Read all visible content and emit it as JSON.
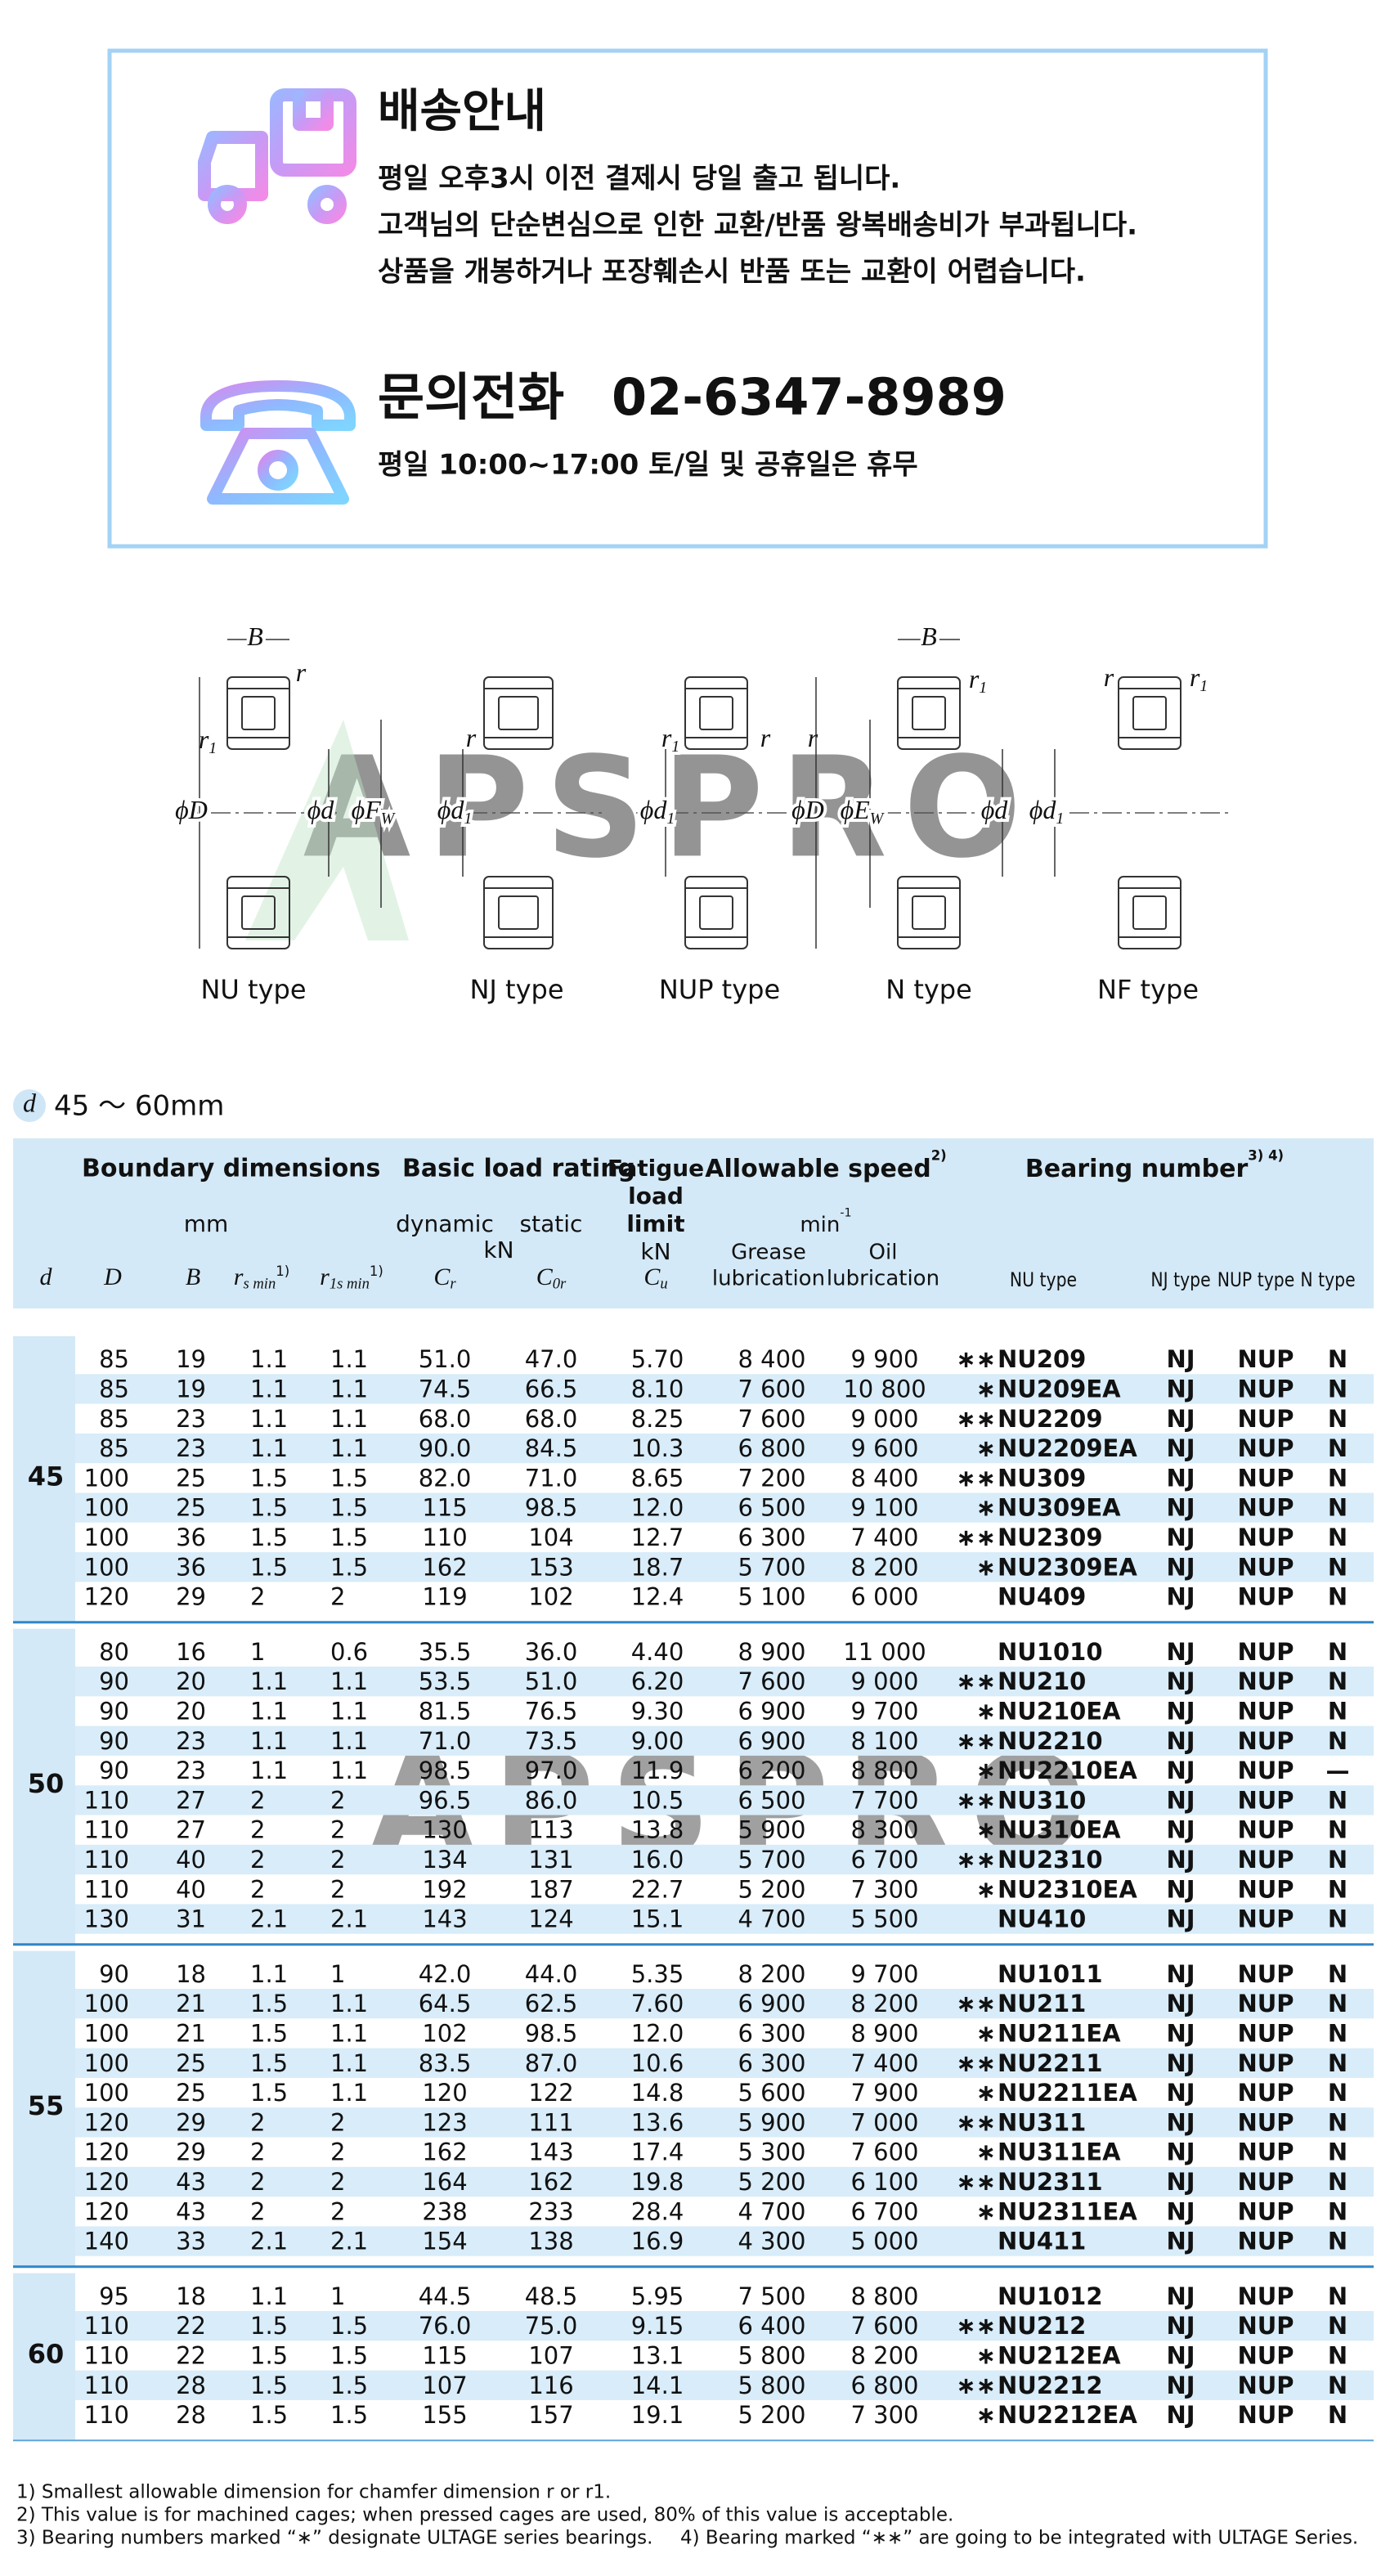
{
  "notice": {
    "title": "배송안내",
    "lines": [
      "평일 오후3시 이전 결제시 당일 출고 됩니다.",
      "고객님의 단순변심으로 인한 교환/반품 왕복배송비가 부과됩니다.",
      "상품을 개봉하거나 포장훼손시 반품 또는 교환이 어렵습니다."
    ],
    "phone_label": "문의전화",
    "phone_number": "02-6347-8989",
    "hours": "평일 10:00~17:00 토/일 및 공휴일은 휴무"
  },
  "diagram": {
    "watermark": "APSPRO",
    "types": [
      {
        "name": "NU type",
        "symbols": [
          {
            "t": "B"
          },
          {
            "t": "r"
          },
          {
            "t": "r",
            "sub": "1"
          },
          {
            "t": "ϕD"
          },
          {
            "t": "ϕd"
          },
          {
            "t": "ϕF",
            "sub": "W"
          }
        ]
      },
      {
        "name": "NJ type",
        "symbols": [
          {
            "t": "r"
          },
          {
            "t": "ϕd",
            "sub": "1"
          }
        ]
      },
      {
        "name": "NUP type",
        "symbols": [
          {
            "t": "r",
            "sub": "1"
          },
          {
            "t": "r"
          },
          {
            "t": "ϕd",
            "sub": "1"
          }
        ]
      },
      {
        "name": "N type",
        "symbols": [
          {
            "t": "B"
          },
          {
            "t": "r",
            "sub": "1"
          },
          {
            "t": "r"
          },
          {
            "t": "ϕD"
          },
          {
            "t": "ϕE",
            "sub": "W"
          },
          {
            "t": "ϕd"
          },
          {
            "t": "ϕd",
            "sub": "1"
          }
        ]
      },
      {
        "name": "NF type",
        "symbols": [
          {
            "t": "r"
          },
          {
            "t": "r",
            "sub": "1"
          }
        ]
      }
    ]
  },
  "range": {
    "symbol": "d",
    "text": "45 ～ 60mm"
  },
  "table": {
    "headers": {
      "boundary": "Boundary dimensions",
      "mm": "mm",
      "basic": "Basic load rating",
      "dynamic": "dynamic",
      "static": "static",
      "kn1": "kN",
      "fatigue": [
        "Fatigue",
        "load",
        "limit"
      ],
      "kn2": "kN",
      "speed": {
        "t": "Allowable speed",
        "sup": "2)"
      },
      "min": {
        "t": "min",
        "sup": "-1"
      },
      "grease": [
        "Grease",
        "lubrication"
      ],
      "oil": [
        "Oil",
        "lubrication"
      ],
      "bearing": {
        "t": "Bearing number",
        "sup": "3) 4)"
      },
      "symbols": [
        {
          "t": "d"
        },
        {
          "t": "D"
        },
        {
          "t": "B"
        },
        {
          "t": "r",
          "sub": "s min",
          "sup": "1)"
        },
        {
          "t": "r",
          "sub": "1s min",
          "sup": "1)"
        },
        {
          "t": "C",
          "sub": "r"
        },
        {
          "t": "C",
          "sub": "0r"
        },
        {
          "t": "C",
          "sub": "u"
        }
      ],
      "types": [
        "NU type",
        "NJ type",
        "NUP type",
        "N type"
      ]
    },
    "groups": [
      {
        "d": "45",
        "marks": [
          "∗∗",
          "∗",
          "∗∗",
          "∗",
          "∗∗",
          "∗",
          "∗∗",
          "∗",
          null
        ],
        "rows": [
          [
            "85",
            "19",
            "1.1",
            "1.1",
            "51.0",
            "47.0",
            "5.70",
            "8 400",
            "9 900",
            "NU209",
            "NJ",
            "NUP",
            "N"
          ],
          [
            "85",
            "19",
            "1.1",
            "1.1",
            "74.5",
            "66.5",
            "8.10",
            "7 600",
            "10 800",
            "NU209EA",
            "NJ",
            "NUP",
            "N"
          ],
          [
            "85",
            "23",
            "1.1",
            "1.1",
            "68.0",
            "68.0",
            "8.25",
            "7 600",
            "9 000",
            "NU2209",
            "NJ",
            "NUP",
            "N"
          ],
          [
            "85",
            "23",
            "1.1",
            "1.1",
            "90.0",
            "84.5",
            "10.3",
            "6 800",
            "9 600",
            "NU2209EA",
            "NJ",
            "NUP",
            "N"
          ],
          [
            "100",
            "25",
            "1.5",
            "1.5",
            "82.0",
            "71.0",
            "8.65",
            "7 200",
            "8 400",
            "NU309",
            "NJ",
            "NUP",
            "N"
          ],
          [
            "100",
            "25",
            "1.5",
            "1.5",
            "115",
            "98.5",
            "12.0",
            "6 500",
            "9 100",
            "NU309EA",
            "NJ",
            "NUP",
            "N"
          ],
          [
            "100",
            "36",
            "1.5",
            "1.5",
            "110",
            "104",
            "12.7",
            "6 300",
            "7 400",
            "NU2309",
            "NJ",
            "NUP",
            "N"
          ],
          [
            "100",
            "36",
            "1.5",
            "1.5",
            "162",
            "153",
            "18.7",
            "5 700",
            "8 200",
            "NU2309EA",
            "NJ",
            "NUP",
            "N"
          ],
          [
            "120",
            "29",
            "2",
            "2",
            "119",
            "102",
            "12.4",
            "5 100",
            "6 000",
            "NU409",
            "NJ",
            "NUP",
            "N"
          ]
        ]
      },
      {
        "d": "50",
        "marks": [
          null,
          "∗∗",
          "∗",
          "∗∗",
          "∗",
          "∗∗",
          "∗",
          "∗∗",
          "∗",
          null
        ],
        "rows": [
          [
            "80",
            "16",
            "1",
            "0.6",
            "35.5",
            "36.0",
            "4.40",
            "8 900",
            "11 000",
            "NU1010",
            "NJ",
            "NUP",
            "N"
          ],
          [
            "90",
            "20",
            "1.1",
            "1.1",
            "53.5",
            "51.0",
            "6.20",
            "7 600",
            "9 000",
            "NU210",
            "NJ",
            "NUP",
            "N"
          ],
          [
            "90",
            "20",
            "1.1",
            "1.1",
            "81.5",
            "76.5",
            "9.30",
            "6 900",
            "9 700",
            "NU210EA",
            "NJ",
            "NUP",
            "N"
          ],
          [
            "90",
            "23",
            "1.1",
            "1.1",
            "71.0",
            "73.5",
            "9.00",
            "6 900",
            "8 100",
            "NU2210",
            "NJ",
            "NUP",
            "N"
          ],
          [
            "90",
            "23",
            "1.1",
            "1.1",
            "98.5",
            "97.0",
            "11.9",
            "6 200",
            "8 800",
            "NU2210EA",
            "NJ",
            "NUP",
            "—"
          ],
          [
            "110",
            "27",
            "2",
            "2",
            "96.5",
            "86.0",
            "10.5",
            "6 500",
            "7 700",
            "NU310",
            "NJ",
            "NUP",
            "N"
          ],
          [
            "110",
            "27",
            "2",
            "2",
            "130",
            "113",
            "13.8",
            "5 900",
            "8 300",
            "NU310EA",
            "NJ",
            "NUP",
            "N"
          ],
          [
            "110",
            "40",
            "2",
            "2",
            "134",
            "131",
            "16.0",
            "5 700",
            "6 700",
            "NU2310",
            "NJ",
            "NUP",
            "N"
          ],
          [
            "110",
            "40",
            "2",
            "2",
            "192",
            "187",
            "22.7",
            "5 200",
            "7 300",
            "NU2310EA",
            "NJ",
            "NUP",
            "N"
          ],
          [
            "130",
            "31",
            "2.1",
            "2.1",
            "143",
            "124",
            "15.1",
            "4 700",
            "5 500",
            "NU410",
            "NJ",
            "NUP",
            "N"
          ]
        ]
      },
      {
        "d": "55",
        "marks": [
          null,
          "∗∗",
          "∗",
          "∗∗",
          "∗",
          "∗∗",
          "∗",
          "∗∗",
          "∗",
          null
        ],
        "rows": [
          [
            "90",
            "18",
            "1.1",
            "1",
            "42.0",
            "44.0",
            "5.35",
            "8 200",
            "9 700",
            "NU1011",
            "NJ",
            "NUP",
            "N"
          ],
          [
            "100",
            "21",
            "1.5",
            "1.1",
            "64.5",
            "62.5",
            "7.60",
            "6 900",
            "8 200",
            "NU211",
            "NJ",
            "NUP",
            "N"
          ],
          [
            "100",
            "21",
            "1.5",
            "1.1",
            "102",
            "98.5",
            "12.0",
            "6 300",
            "8 900",
            "NU211EA",
            "NJ",
            "NUP",
            "N"
          ],
          [
            "100",
            "25",
            "1.5",
            "1.1",
            "83.5",
            "87.0",
            "10.6",
            "6 300",
            "7 400",
            "NU2211",
            "NJ",
            "NUP",
            "N"
          ],
          [
            "100",
            "25",
            "1.5",
            "1.1",
            "120",
            "122",
            "14.8",
            "5 600",
            "7 900",
            "NU2211EA",
            "NJ",
            "NUP",
            "N"
          ],
          [
            "120",
            "29",
            "2",
            "2",
            "123",
            "111",
            "13.6",
            "5 900",
            "7 000",
            "NU311",
            "NJ",
            "NUP",
            "N"
          ],
          [
            "120",
            "29",
            "2",
            "2",
            "162",
            "143",
            "17.4",
            "5 300",
            "7 600",
            "NU311EA",
            "NJ",
            "NUP",
            "N"
          ],
          [
            "120",
            "43",
            "2",
            "2",
            "164",
            "162",
            "19.8",
            "5 200",
            "6 100",
            "NU2311",
            "NJ",
            "NUP",
            "N"
          ],
          [
            "120",
            "43",
            "2",
            "2",
            "238",
            "233",
            "28.4",
            "4 700",
            "6 700",
            "NU2311EA",
            "NJ",
            "NUP",
            "N"
          ],
          [
            "140",
            "33",
            "2.1",
            "2.1",
            "154",
            "138",
            "16.9",
            "4 300",
            "5 000",
            "NU411",
            "NJ",
            "NUP",
            "N"
          ]
        ]
      },
      {
        "d": "60",
        "marks": [
          null,
          "∗∗",
          "∗",
          "∗∗",
          "∗"
        ],
        "rows": [
          [
            "95",
            "18",
            "1.1",
            "1",
            "44.5",
            "48.5",
            "5.95",
            "7 500",
            "8 800",
            "NU1012",
            "NJ",
            "NUP",
            "N"
          ],
          [
            "110",
            "22",
            "1.5",
            "1.5",
            "76.0",
            "75.0",
            "9.15",
            "6 400",
            "7 600",
            "NU212",
            "NJ",
            "NUP",
            "N"
          ],
          [
            "110",
            "22",
            "1.5",
            "1.5",
            "115",
            "107",
            "13.1",
            "5 800",
            "8 200",
            "NU212EA",
            "NJ",
            "NUP",
            "N"
          ],
          [
            "110",
            "28",
            "1.5",
            "1.5",
            "107",
            "116",
            "14.1",
            "5 800",
            "6 800",
            "NU2212",
            "NJ",
            "NUP",
            "N"
          ],
          [
            "110",
            "28",
            "1.5",
            "1.5",
            "155",
            "157",
            "19.1",
            "5 200",
            "7 300",
            "NU2212EA",
            "NJ",
            "NUP",
            "N"
          ]
        ]
      }
    ]
  },
  "footnotes": [
    "1) Smallest allowable dimension for chamfer dimension r or r1.",
    "2) This value is for machined cages; when pressed cages are used, 80% of this value is acceptable.",
    "3) Bearing numbers marked “∗” designate ULTAGE series bearings.",
    "4) Bearing marked “∗∗” are going to be integrated with ULTAGE Series."
  ]
}
